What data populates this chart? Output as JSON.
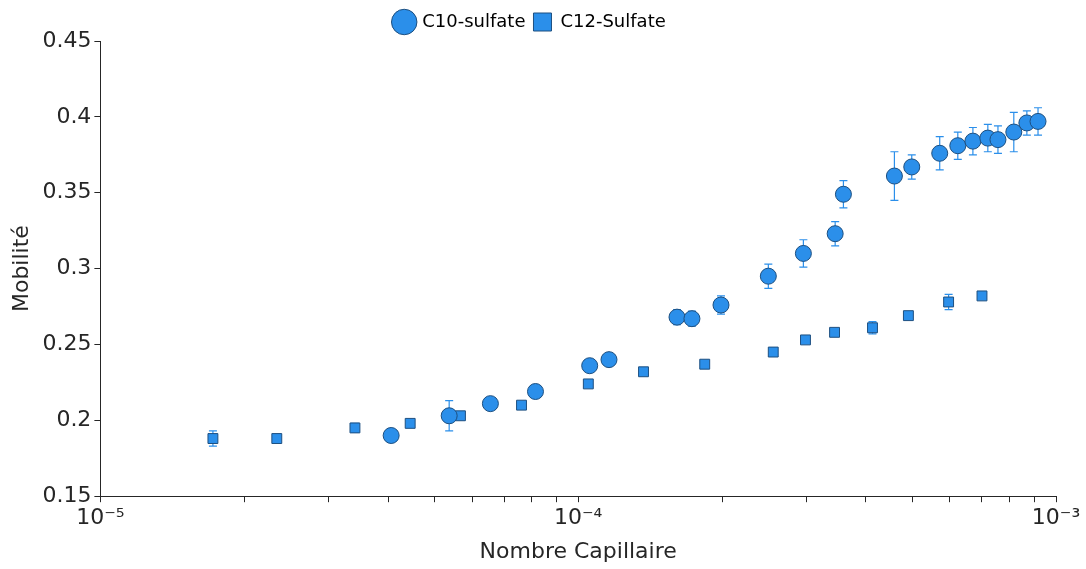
{
  "chart_data": {
    "type": "scatter",
    "xlabel": "Nombre Capillaire",
    "ylabel": "Mobilité",
    "log": "x",
    "grid": false,
    "legend": "top",
    "xlim": [
      1e-05,
      0.001
    ],
    "ylim": [
      0.15,
      0.45
    ],
    "xticks": [
      {
        "value": 1e-05,
        "label": "10⁻⁵"
      },
      {
        "value": 2e-05,
        "label": null
      },
      {
        "value": 3e-05,
        "label": null
      },
      {
        "value": 4e-05,
        "label": null
      },
      {
        "value": 5e-05,
        "label": null
      },
      {
        "value": 6e-05,
        "label": null
      },
      {
        "value": 7e-05,
        "label": null
      },
      {
        "value": 8e-05,
        "label": null
      },
      {
        "value": 9e-05,
        "label": null
      },
      {
        "value": 0.0001,
        "label": "10⁻⁴"
      },
      {
        "value": 0.0002,
        "label": null
      },
      {
        "value": 0.0003,
        "label": null
      },
      {
        "value": 0.0004,
        "label": null
      },
      {
        "value": 0.0005,
        "label": null
      },
      {
        "value": 0.0006,
        "label": null
      },
      {
        "value": 0.0007,
        "label": null
      },
      {
        "value": 0.0008,
        "label": null
      },
      {
        "value": 0.0009,
        "label": null
      },
      {
        "value": 0.001,
        "label": "10⁻³"
      }
    ],
    "yticks": [
      0.15,
      {
        "value": 0.2,
        "label": "0.2"
      },
      0.25,
      {
        "value": 0.3,
        "label": "0.3"
      },
      0.35,
      {
        "value": 0.4,
        "label": "0.4"
      },
      0.45
    ],
    "series": [
      {
        "name": "C10-sulfate",
        "color": "#2b8fea",
        "marker": "circle",
        "x": [
          4.06e-05,
          5.37e-05,
          6.55e-05,
          8.14e-05,
          0.0001057,
          0.000116,
          0.000161,
          0.000173,
          0.000199,
          0.00025,
          0.000296,
          0.000345,
          0.000359,
          0.000459,
          0.000499,
          0.000571,
          0.000623,
          0.00067,
          0.00072,
          0.000756,
          0.000816,
          0.000869,
          0.000917
        ],
        "values": [
          0.19,
          0.203,
          0.211,
          0.219,
          0.236,
          0.24,
          0.268,
          0.267,
          0.276,
          0.295,
          0.31,
          0.323,
          0.349,
          0.361,
          0.367,
          0.376,
          0.381,
          0.384,
          0.386,
          0.385,
          0.39,
          0.396,
          0.397
        ],
        "errors": [
          null,
          0.01,
          null,
          null,
          0.004,
          null,
          0.005,
          0.005,
          0.006,
          0.008,
          0.009,
          0.008,
          0.009,
          0.016,
          0.008,
          0.011,
          0.009,
          0.009,
          0.009,
          0.009,
          0.013,
          0.008,
          0.009
        ]
      },
      {
        "name": "C12-Sulfate",
        "color": "#2b8fea",
        "marker": "square",
        "x": [
          1.72e-05,
          2.34e-05,
          3.41e-05,
          4.45e-05,
          5.67e-05,
          7.61e-05,
          0.000105,
          0.000137,
          0.000184,
          0.000256,
          0.000299,
          0.000344,
          0.000413,
          0.000491,
          0.000596,
          0.0007
        ],
        "values": [
          0.188,
          0.188,
          0.195,
          0.198,
          0.203,
          0.21,
          0.224,
          0.232,
          0.237,
          0.245,
          0.253,
          0.258,
          0.261,
          0.269,
          0.278,
          0.282
        ],
        "errors": [
          0.005,
          null,
          0.003,
          null,
          null,
          null,
          null,
          null,
          null,
          null,
          null,
          null,
          0.004,
          null,
          0.005,
          null
        ]
      }
    ]
  }
}
